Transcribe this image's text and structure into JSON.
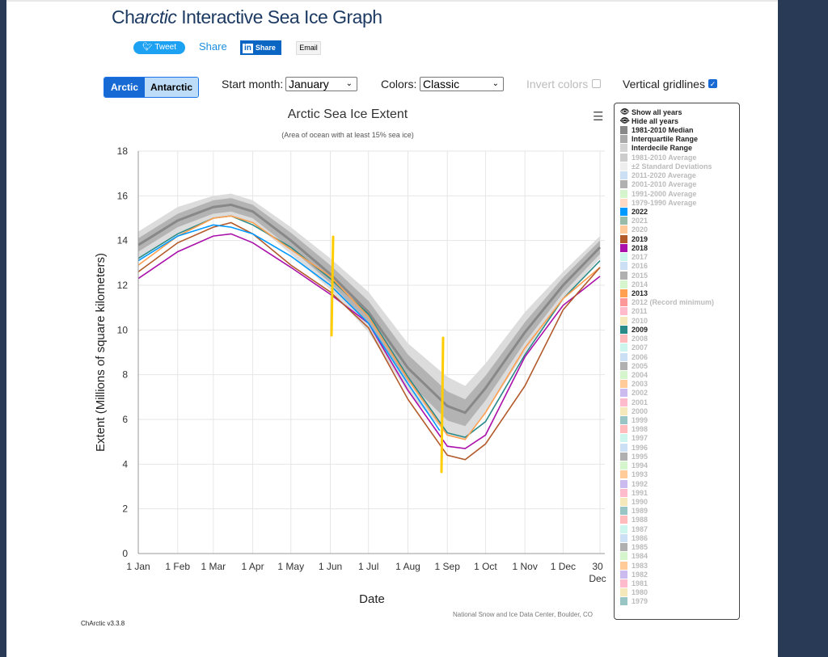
{
  "header": {
    "title_prefix": "Ch",
    "title_italic": "arctic",
    "title_rest": " Interactive Sea Ice Graph",
    "tweet": "Tweet",
    "share": "Share",
    "linkedin_logo": "in",
    "linkedin": "Share",
    "email": "Email"
  },
  "controls": {
    "arctic": "Arctic",
    "antarctic": "Antarctic",
    "start_month_label": "Start month:",
    "start_month": "January",
    "colors_label": "Colors:",
    "colors": "Classic",
    "invert_label": "Invert colors",
    "invert_checked": false,
    "gridlines_label": "Vertical gridlines",
    "gridlines_checked": true
  },
  "chart_data": {
    "type": "line",
    "title": "Arctic Sea Ice Extent",
    "subtitle": "(Area of ocean with at least 15% sea ice)",
    "xlabel": "Date",
    "ylabel": "Extent (Millions of square kilometers)",
    "ylim": [
      0,
      18
    ],
    "yticks": [
      0,
      2,
      4,
      6,
      8,
      10,
      12,
      14,
      16,
      18
    ],
    "xticks": [
      {
        "label": "1 Jan",
        "day": 0
      },
      {
        "label": "1 Feb",
        "day": 31
      },
      {
        "label": "1 Mar",
        "day": 59
      },
      {
        "label": "1 Apr",
        "day": 90
      },
      {
        "label": "1 May",
        "day": 120
      },
      {
        "label": "1 Jun",
        "day": 151
      },
      {
        "label": "1 Jul",
        "day": 181
      },
      {
        "label": "1 Aug",
        "day": 212
      },
      {
        "label": "1 Sep",
        "day": 243
      },
      {
        "label": "1 Oct",
        "day": 273
      },
      {
        "label": "1 Nov",
        "day": 304
      },
      {
        "label": "1 Dec",
        "day": 334
      },
      {
        "label": "30 Dec",
        "day": 363
      }
    ],
    "grid": true,
    "x_days": [
      0,
      31,
      59,
      73,
      90,
      120,
      151,
      181,
      212,
      243,
      257,
      273,
      304,
      334,
      363
    ],
    "median": [
      13.8,
      14.9,
      15.5,
      15.6,
      15.3,
      14.0,
      12.5,
      10.8,
      8.3,
      6.6,
      6.3,
      7.4,
      9.9,
      12.0,
      13.7
    ],
    "interquartile_halfwidth": [
      0.3,
      0.3,
      0.3,
      0.3,
      0.3,
      0.35,
      0.4,
      0.5,
      0.6,
      0.65,
      0.6,
      0.55,
      0.45,
      0.35,
      0.3
    ],
    "interdecile_halfwidth": [
      0.6,
      0.6,
      0.5,
      0.5,
      0.5,
      0.6,
      0.7,
      0.9,
      1.1,
      1.3,
      1.2,
      1.1,
      0.9,
      0.6,
      0.5
    ],
    "series": [
      {
        "name": "2022",
        "color": "#0099ff",
        "values": [
          13.1,
          14.2,
          14.7,
          14.6,
          14.3,
          13.3,
          12.0,
          10.3,
          7.6,
          null,
          null,
          null,
          null,
          null,
          null
        ],
        "extra": [
          [
            237,
            5.5
          ]
        ]
      },
      {
        "name": "2019",
        "color": "#b35a2a",
        "values": [
          12.6,
          13.9,
          14.6,
          14.8,
          14.3,
          12.9,
          11.7,
          10.1,
          6.9,
          4.4,
          4.2,
          4.9,
          7.5,
          10.9,
          12.8
        ]
      },
      {
        "name": "2018",
        "color": "#aa11aa",
        "values": [
          12.3,
          13.5,
          14.2,
          14.3,
          13.9,
          12.8,
          11.6,
          10.3,
          7.3,
          4.8,
          4.7,
          5.3,
          8.8,
          11.1,
          12.4
        ]
      },
      {
        "name": "2013",
        "color": "#ff9f50",
        "values": [
          12.9,
          14.2,
          15.0,
          15.1,
          14.8,
          13.6,
          12.4,
          10.6,
          7.8,
          5.3,
          5.1,
          6.3,
          9.2,
          11.4,
          12.8
        ]
      },
      {
        "name": "2009",
        "color": "#2a8a88",
        "values": [
          13.2,
          14.3,
          15.0,
          15.1,
          14.7,
          13.7,
          12.3,
          10.7,
          7.9,
          5.4,
          5.2,
          5.9,
          8.9,
          11.4,
          13.1
        ]
      }
    ],
    "annotations_color": "#ffcc00"
  },
  "legend": {
    "show_all": "Show all years",
    "hide_all": "Hide all years",
    "items": [
      {
        "label": "1981-2010 Median",
        "color": "#888888",
        "on": true
      },
      {
        "label": "Interquartile Range",
        "color": "#aaaaaa",
        "on": true
      },
      {
        "label": "Interdecile Range",
        "color": "#d3d3d3",
        "on": true
      },
      {
        "label": "1981-2010 Average",
        "color": "#cccccc",
        "on": false
      },
      {
        "label": "±2 Standard Deviations",
        "color": "#eeeeee",
        "on": false
      },
      {
        "label": "2011-2020 Average",
        "color": "#cce0f5",
        "on": false
      },
      {
        "label": "2001-2010 Average",
        "color": "#b0b0b0",
        "on": false
      },
      {
        "label": "1991-2000 Average",
        "color": "#d5f5cc",
        "on": false
      },
      {
        "label": "1979-1990 Average",
        "color": "#ffd9c4",
        "on": false
      },
      {
        "label": "2022",
        "color": "#0099ff",
        "on": true
      },
      {
        "label": "2021",
        "color": "#99bbaa",
        "on": false
      },
      {
        "label": "2020",
        "color": "#ffc899",
        "on": false
      },
      {
        "label": "2019",
        "color": "#b35a2a",
        "on": true
      },
      {
        "label": "2018",
        "color": "#aa11aa",
        "on": true
      },
      {
        "label": "2017",
        "color": "#ccf5ee",
        "on": false
      },
      {
        "label": "2016",
        "color": "#cce0f5",
        "on": false
      },
      {
        "label": "2015",
        "color": "#b0b0b0",
        "on": false
      },
      {
        "label": "2014",
        "color": "#d5f5cc",
        "on": false
      },
      {
        "label": "2013",
        "color": "#ff9f50",
        "on": true
      },
      {
        "label": "2012 (Record minimum)",
        "color": "#ff9999",
        "on": false
      },
      {
        "label": "2011",
        "color": "#ffbbcc",
        "on": false
      },
      {
        "label": "2010",
        "color": "#f5e8bb",
        "on": false
      },
      {
        "label": "2009",
        "color": "#2a8a88",
        "on": true
      },
      {
        "label": "2008",
        "color": "#ffbbbb",
        "on": false
      },
      {
        "label": "2007",
        "color": "#ccf5ee",
        "on": false
      },
      {
        "label": "2006",
        "color": "#cce0f5",
        "on": false
      },
      {
        "label": "2005",
        "color": "#b0b0b0",
        "on": false
      },
      {
        "label": "2004",
        "color": "#d5f5cc",
        "on": false
      },
      {
        "label": "2003",
        "color": "#ffcc99",
        "on": false
      },
      {
        "label": "2002",
        "color": "#ccbbee",
        "on": false
      },
      {
        "label": "2001",
        "color": "#ffbbcc",
        "on": false
      },
      {
        "label": "2000",
        "color": "#f5e8bb",
        "on": false
      },
      {
        "label": "1999",
        "color": "#99c5c5",
        "on": false
      },
      {
        "label": "1998",
        "color": "#ffbbbb",
        "on": false
      },
      {
        "label": "1997",
        "color": "#ccf5ee",
        "on": false
      },
      {
        "label": "1996",
        "color": "#cce0f5",
        "on": false
      },
      {
        "label": "1995",
        "color": "#b0b0b0",
        "on": false
      },
      {
        "label": "1994",
        "color": "#d5f5cc",
        "on": false
      },
      {
        "label": "1993",
        "color": "#ffcc99",
        "on": false
      },
      {
        "label": "1992",
        "color": "#ccbbee",
        "on": false
      },
      {
        "label": "1991",
        "color": "#ffbbcc",
        "on": false
      },
      {
        "label": "1990",
        "color": "#f5e8bb",
        "on": false
      },
      {
        "label": "1989",
        "color": "#99c5c5",
        "on": false
      },
      {
        "label": "1988",
        "color": "#ffbbbb",
        "on": false
      },
      {
        "label": "1987",
        "color": "#ccf5ee",
        "on": false
      },
      {
        "label": "1986",
        "color": "#cce0f5",
        "on": false
      },
      {
        "label": "1985",
        "color": "#b0b0b0",
        "on": false
      },
      {
        "label": "1984",
        "color": "#d5f5cc",
        "on": false
      },
      {
        "label": "1983",
        "color": "#ffcc99",
        "on": false
      },
      {
        "label": "1982",
        "color": "#ccbbee",
        "on": false
      },
      {
        "label": "1981",
        "color": "#ffbbcc",
        "on": false
      },
      {
        "label": "1980",
        "color": "#f5e8bb",
        "on": false
      },
      {
        "label": "1979",
        "color": "#99c5c5",
        "on": false
      }
    ]
  },
  "footer": {
    "version": "ChArctic v3.3.8",
    "credit": "National Snow and Ice Data Center, Boulder, CO"
  }
}
